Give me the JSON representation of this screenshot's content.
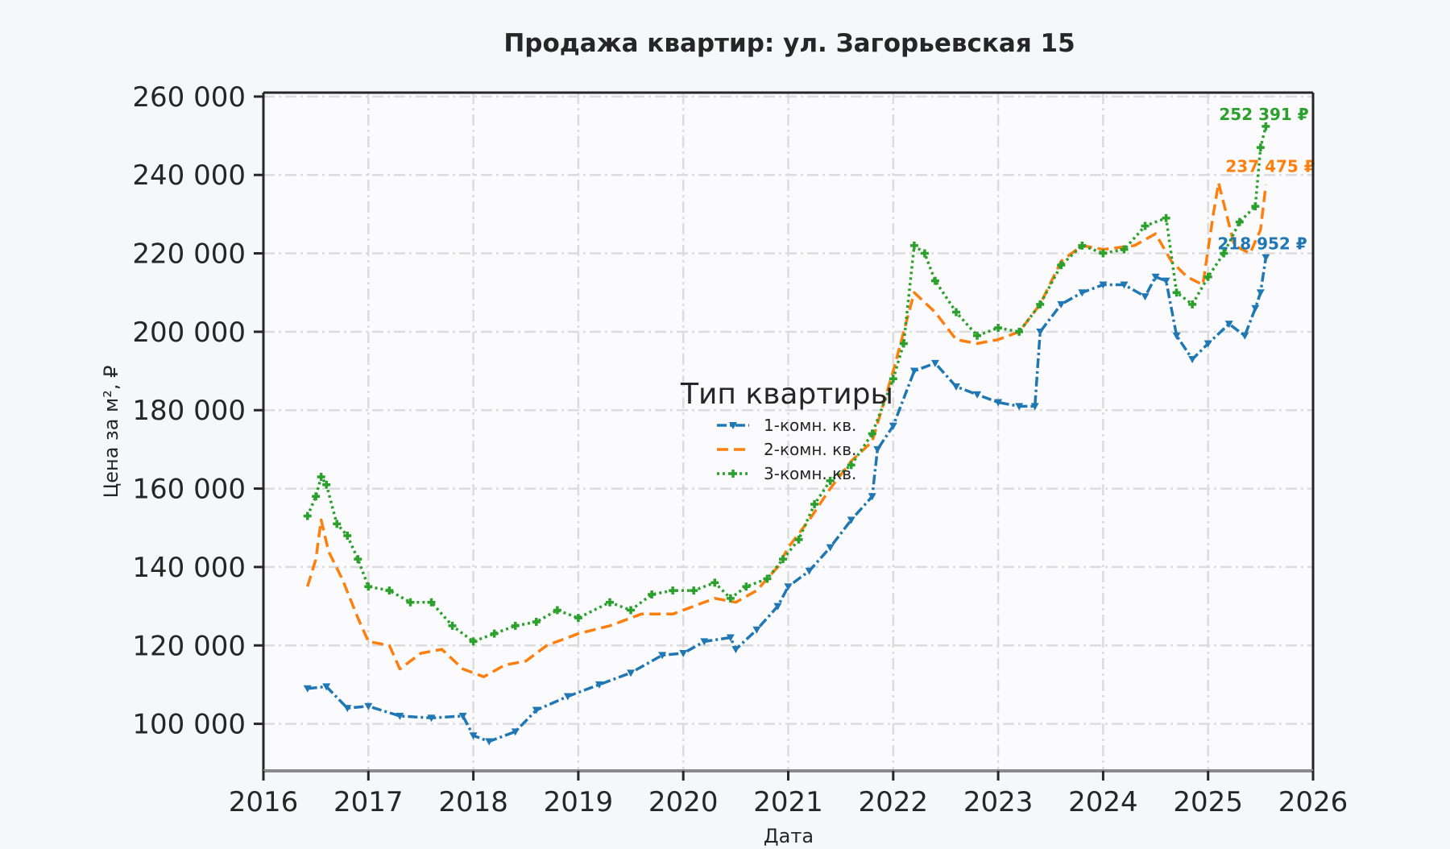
{
  "chart_data": {
    "type": "line",
    "title": "Продажа квартир: ул. Загорьевская 15",
    "xlabel": "Дата",
    "ylabel": "Цена за м², ₽",
    "xlim": [
      2016,
      2026
    ],
    "ylim": [
      88000,
      261000
    ],
    "x_ticks": [
      "2016",
      "2017",
      "2018",
      "2019",
      "2020",
      "2021",
      "2022",
      "2023",
      "2024",
      "2025",
      "2026"
    ],
    "y_ticks": [
      "100 000",
      "120 000",
      "140 000",
      "160 000",
      "180 000",
      "200 000",
      "220 000",
      "240 000",
      "260 000"
    ],
    "grid": true,
    "legend": {
      "title": "Тип квартиры",
      "placement": "center"
    },
    "series": [
      {
        "name": "1-комн. кв.",
        "color": "#1f77b4",
        "style": "dash-dot",
        "marker": "triangle-down",
        "end_label": "218 952 ₽",
        "points": [
          [
            2016.42,
            109000
          ],
          [
            2016.6,
            109500
          ],
          [
            2016.8,
            104000
          ],
          [
            2017.0,
            104500
          ],
          [
            2017.3,
            102000
          ],
          [
            2017.6,
            101500
          ],
          [
            2017.9,
            102000
          ],
          [
            2018.0,
            97000
          ],
          [
            2018.15,
            95500
          ],
          [
            2018.4,
            98000
          ],
          [
            2018.6,
            103500
          ],
          [
            2018.9,
            107000
          ],
          [
            2019.2,
            110000
          ],
          [
            2019.5,
            113000
          ],
          [
            2019.8,
            117500
          ],
          [
            2020.0,
            118000
          ],
          [
            2020.2,
            121000
          ],
          [
            2020.45,
            122000
          ],
          [
            2020.5,
            119000
          ],
          [
            2020.7,
            124000
          ],
          [
            2020.9,
            130000
          ],
          [
            2021.0,
            135000
          ],
          [
            2021.2,
            139000
          ],
          [
            2021.4,
            145000
          ],
          [
            2021.6,
            152000
          ],
          [
            2021.8,
            158000
          ],
          [
            2021.85,
            170000
          ],
          [
            2022.0,
            176000
          ],
          [
            2022.2,
            190000
          ],
          [
            2022.4,
            192000
          ],
          [
            2022.6,
            186000
          ],
          [
            2022.8,
            184000
          ],
          [
            2023.0,
            182000
          ],
          [
            2023.2,
            181000
          ],
          [
            2023.35,
            181000
          ],
          [
            2023.4,
            200000
          ],
          [
            2023.6,
            207000
          ],
          [
            2023.8,
            210000
          ],
          [
            2024.0,
            212000
          ],
          [
            2024.2,
            212000
          ],
          [
            2024.4,
            209000
          ],
          [
            2024.5,
            214000
          ],
          [
            2024.6,
            213000
          ],
          [
            2024.7,
            199000
          ],
          [
            2024.85,
            193000
          ],
          [
            2025.0,
            197000
          ],
          [
            2025.2,
            202000
          ],
          [
            2025.35,
            199000
          ],
          [
            2025.45,
            206000
          ],
          [
            2025.5,
            210000
          ],
          [
            2025.55,
            218952
          ]
        ]
      },
      {
        "name": "2-комн. кв.",
        "color": "#ff7f0e",
        "style": "dashed",
        "marker": "none",
        "end_label": "237 475 ₽",
        "points": [
          [
            2016.42,
            135000
          ],
          [
            2016.5,
            142000
          ],
          [
            2016.55,
            152000
          ],
          [
            2016.62,
            144000
          ],
          [
            2016.75,
            137000
          ],
          [
            2016.9,
            127000
          ],
          [
            2017.0,
            121000
          ],
          [
            2017.2,
            120000
          ],
          [
            2017.3,
            114000
          ],
          [
            2017.5,
            118000
          ],
          [
            2017.7,
            119000
          ],
          [
            2017.9,
            114000
          ],
          [
            2018.1,
            112000
          ],
          [
            2018.3,
            115000
          ],
          [
            2018.5,
            116000
          ],
          [
            2018.7,
            120000
          ],
          [
            2019.0,
            123000
          ],
          [
            2019.3,
            125000
          ],
          [
            2019.6,
            128000
          ],
          [
            2019.9,
            128000
          ],
          [
            2020.0,
            129000
          ],
          [
            2020.3,
            132000
          ],
          [
            2020.5,
            131000
          ],
          [
            2020.7,
            134000
          ],
          [
            2020.9,
            140000
          ],
          [
            2021.0,
            145000
          ],
          [
            2021.2,
            152000
          ],
          [
            2021.4,
            160000
          ],
          [
            2021.6,
            167000
          ],
          [
            2021.8,
            172000
          ],
          [
            2022.0,
            190000
          ],
          [
            2022.2,
            210000
          ],
          [
            2022.4,
            205000
          ],
          [
            2022.6,
            198000
          ],
          [
            2022.8,
            197000
          ],
          [
            2023.0,
            198000
          ],
          [
            2023.2,
            200000
          ],
          [
            2023.4,
            207000
          ],
          [
            2023.6,
            218000
          ],
          [
            2023.8,
            222000
          ],
          [
            2024.0,
            221000
          ],
          [
            2024.3,
            222000
          ],
          [
            2024.5,
            225000
          ],
          [
            2024.65,
            218000
          ],
          [
            2024.8,
            214000
          ],
          [
            2024.95,
            212000
          ],
          [
            2025.05,
            230000
          ],
          [
            2025.1,
            238000
          ],
          [
            2025.25,
            222000
          ],
          [
            2025.4,
            220000
          ],
          [
            2025.5,
            226000
          ],
          [
            2025.55,
            237475
          ]
        ]
      },
      {
        "name": "3-комн. кв.",
        "color": "#2ca02c",
        "style": "dotted",
        "marker": "plus",
        "end_label": "252 391 ₽",
        "points": [
          [
            2016.42,
            153000
          ],
          [
            2016.5,
            158000
          ],
          [
            2016.55,
            163000
          ],
          [
            2016.6,
            161000
          ],
          [
            2016.7,
            151000
          ],
          [
            2016.8,
            148000
          ],
          [
            2016.9,
            142000
          ],
          [
            2017.0,
            135000
          ],
          [
            2017.2,
            134000
          ],
          [
            2017.4,
            131000
          ],
          [
            2017.6,
            131000
          ],
          [
            2017.8,
            125000
          ],
          [
            2018.0,
            121000
          ],
          [
            2018.2,
            123000
          ],
          [
            2018.4,
            125000
          ],
          [
            2018.6,
            126000
          ],
          [
            2018.8,
            129000
          ],
          [
            2019.0,
            127000
          ],
          [
            2019.3,
            131000
          ],
          [
            2019.5,
            129000
          ],
          [
            2019.7,
            133000
          ],
          [
            2019.9,
            134000
          ],
          [
            2020.1,
            134000
          ],
          [
            2020.3,
            136000
          ],
          [
            2020.45,
            132000
          ],
          [
            2020.6,
            135000
          ],
          [
            2020.8,
            137000
          ],
          [
            2020.95,
            142000
          ],
          [
            2021.1,
            147000
          ],
          [
            2021.25,
            156000
          ],
          [
            2021.4,
            162000
          ],
          [
            2021.6,
            166000
          ],
          [
            2021.8,
            174000
          ],
          [
            2022.0,
            188000
          ],
          [
            2022.1,
            197000
          ],
          [
            2022.2,
            222000
          ],
          [
            2022.3,
            220000
          ],
          [
            2022.4,
            213000
          ],
          [
            2022.6,
            205000
          ],
          [
            2022.8,
            199000
          ],
          [
            2023.0,
            201000
          ],
          [
            2023.2,
            200000
          ],
          [
            2023.4,
            207000
          ],
          [
            2023.6,
            217000
          ],
          [
            2023.8,
            222000
          ],
          [
            2024.0,
            220000
          ],
          [
            2024.2,
            221000
          ],
          [
            2024.4,
            227000
          ],
          [
            2024.6,
            229000
          ],
          [
            2024.7,
            210000
          ],
          [
            2024.85,
            207000
          ],
          [
            2025.0,
            214000
          ],
          [
            2025.15,
            220000
          ],
          [
            2025.3,
            228000
          ],
          [
            2025.45,
            232000
          ],
          [
            2025.5,
            247000
          ],
          [
            2025.55,
            252391
          ]
        ]
      }
    ]
  }
}
